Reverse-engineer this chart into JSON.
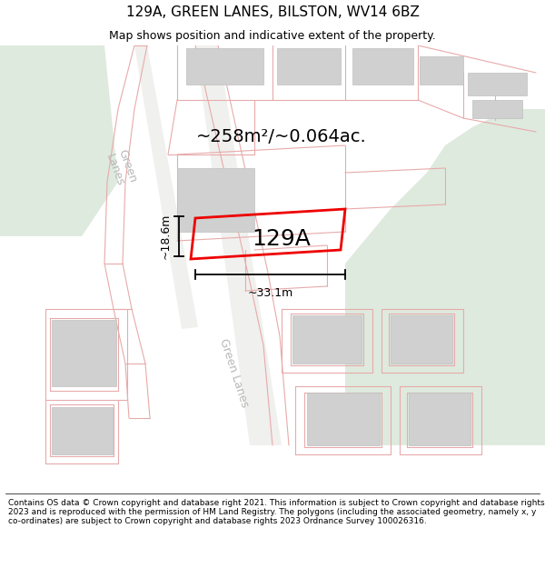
{
  "title": "129A, GREEN LANES, BILSTON, WV14 6BZ",
  "subtitle": "Map shows position and indicative extent of the property.",
  "footer": "Contains OS data © Crown copyright and database right 2021. This information is subject to Crown copyright and database rights 2023 and is reproduced with the permission of HM Land Registry. The polygons (including the associated geometry, namely x, y co-ordinates) are subject to Crown copyright and database rights 2023 Ordnance Survey 100026316.",
  "area_text": "~258m²/~0.064ac.",
  "property_label": "129A",
  "dim_width": "~33.1m",
  "dim_height": "~18.6m",
  "bg_color": "#f7f6f3",
  "green_color": "#deeade",
  "road_line_color": "#e8aaaa",
  "road_fill_color": "#f5f5f5",
  "building_fill": "#d0d0d0",
  "building_edge": "#c0c0c0",
  "property_edge_color": "#ee0000",
  "road_label_color": "#b8b8b8",
  "title_fontsize": 11,
  "subtitle_fontsize": 9,
  "footer_fontsize": 6.5,
  "area_fontsize": 14,
  "label_fontsize": 18,
  "dim_fontsize": 9,
  "road_label_fontsize": 9
}
